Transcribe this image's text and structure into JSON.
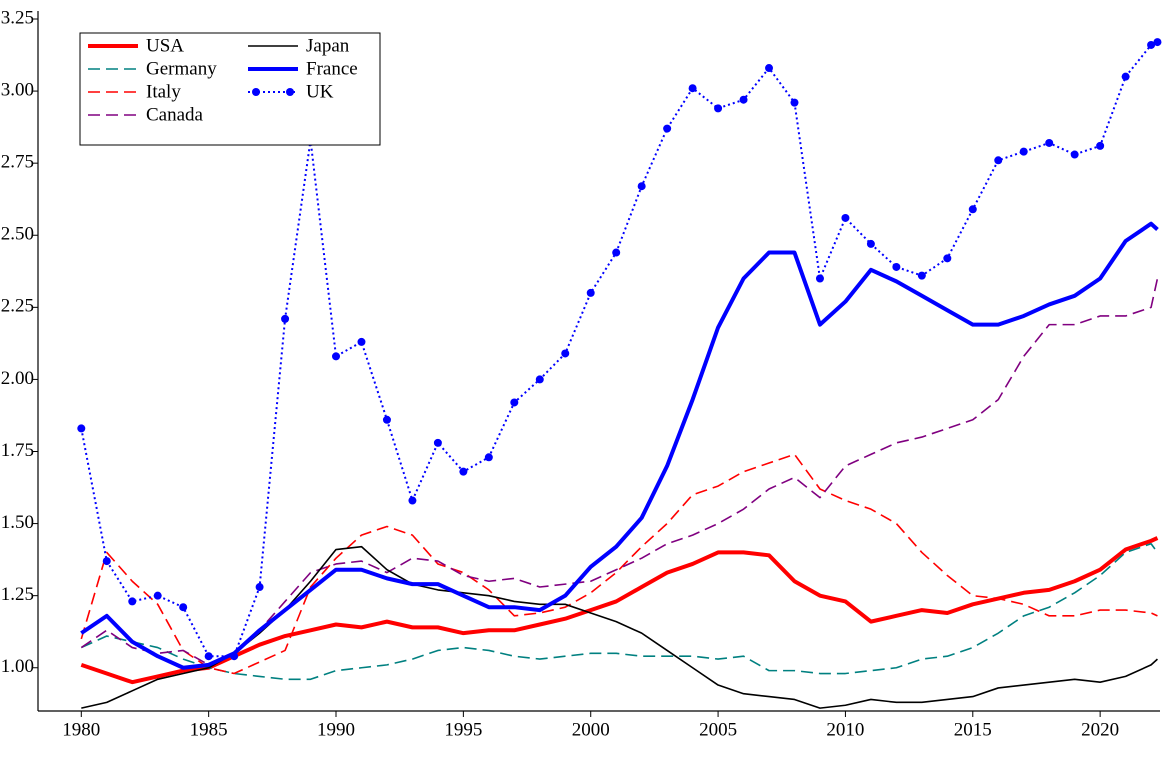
{
  "chart_data": {
    "type": "line",
    "x": [
      1980,
      1981,
      1982,
      1983,
      1984,
      1985,
      1986,
      1987,
      1988,
      1989,
      1990,
      1991,
      1992,
      1993,
      1994,
      1995,
      1996,
      1997,
      1998,
      1999,
      2000,
      2001,
      2002,
      2003,
      2004,
      2005,
      2006,
      2007,
      2008,
      2009,
      2010,
      2011,
      2012,
      2013,
      2014,
      2015,
      2016,
      2017,
      2018,
      2019,
      2020,
      2021,
      2022,
      2022.25
    ],
    "series": [
      {
        "name": "USA",
        "color": "#ff0000",
        "width": 4,
        "dash": "solid",
        "marker": "none",
        "values": [
          1.01,
          0.98,
          0.95,
          0.97,
          0.99,
          1.0,
          1.04,
          1.08,
          1.11,
          1.13,
          1.15,
          1.14,
          1.16,
          1.14,
          1.14,
          1.12,
          1.13,
          1.13,
          1.15,
          1.17,
          1.2,
          1.23,
          1.28,
          1.33,
          1.36,
          1.4,
          1.4,
          1.39,
          1.3,
          1.25,
          1.23,
          1.16,
          1.18,
          1.2,
          1.19,
          1.22,
          1.24,
          1.26,
          1.27,
          1.3,
          1.34,
          1.41,
          1.44,
          1.45
        ]
      },
      {
        "name": "Germany",
        "color": "#008080",
        "width": 1.6,
        "dash": "dashed",
        "marker": "none",
        "values": [
          1.07,
          1.11,
          1.09,
          1.07,
          1.03,
          1.0,
          0.98,
          0.97,
          0.96,
          0.96,
          0.99,
          1.0,
          1.01,
          1.03,
          1.06,
          1.07,
          1.06,
          1.04,
          1.03,
          1.04,
          1.05,
          1.05,
          1.04,
          1.04,
          1.04,
          1.03,
          1.04,
          0.99,
          0.99,
          0.98,
          0.98,
          0.99,
          1.0,
          1.03,
          1.04,
          1.07,
          1.12,
          1.18,
          1.21,
          1.26,
          1.32,
          1.4,
          1.43,
          1.4
        ]
      },
      {
        "name": "Italy",
        "color": "#ff0000",
        "width": 1.6,
        "dash": "dashed",
        "marker": "none",
        "values": [
          1.1,
          1.4,
          1.3,
          1.22,
          1.06,
          1.0,
          0.98,
          1.02,
          1.06,
          1.28,
          1.38,
          1.46,
          1.49,
          1.46,
          1.36,
          1.33,
          1.27,
          1.18,
          1.19,
          1.21,
          1.26,
          1.33,
          1.42,
          1.5,
          1.6,
          1.63,
          1.68,
          1.71,
          1.74,
          1.62,
          1.58,
          1.55,
          1.5,
          1.4,
          1.32,
          1.25,
          1.24,
          1.22,
          1.18,
          1.18,
          1.2,
          1.2,
          1.19,
          1.18
        ]
      },
      {
        "name": "Canada",
        "color": "#800080",
        "width": 1.6,
        "dash": "dashed",
        "marker": "none",
        "values": [
          1.07,
          1.13,
          1.07,
          1.05,
          1.06,
          1.01,
          1.05,
          1.13,
          1.23,
          1.33,
          1.36,
          1.37,
          1.33,
          1.38,
          1.37,
          1.32,
          1.3,
          1.31,
          1.28,
          1.29,
          1.3,
          1.34,
          1.38,
          1.43,
          1.46,
          1.5,
          1.55,
          1.62,
          1.66,
          1.59,
          1.7,
          1.74,
          1.78,
          1.8,
          1.83,
          1.86,
          1.93,
          2.08,
          2.19,
          2.19,
          2.22,
          2.22,
          2.25,
          2.35
        ]
      },
      {
        "name": "Japan",
        "color": "#000000",
        "width": 1.6,
        "dash": "solid",
        "marker": "none",
        "values": [
          0.86,
          0.88,
          0.92,
          0.96,
          0.98,
          1.0,
          1.05,
          1.12,
          1.2,
          1.3,
          1.41,
          1.42,
          1.34,
          1.29,
          1.27,
          1.26,
          1.25,
          1.23,
          1.22,
          1.22,
          1.19,
          1.16,
          1.12,
          1.06,
          1.0,
          0.94,
          0.91,
          0.9,
          0.89,
          0.86,
          0.87,
          0.89,
          0.88,
          0.88,
          0.89,
          0.9,
          0.93,
          0.94,
          0.95,
          0.96,
          0.95,
          0.97,
          1.01,
          1.03
        ]
      },
      {
        "name": "France",
        "color": "#0000ff",
        "width": 4,
        "dash": "solid",
        "marker": "none",
        "values": [
          1.12,
          1.18,
          1.09,
          1.04,
          1.0,
          1.01,
          1.05,
          1.13,
          1.2,
          1.27,
          1.34,
          1.34,
          1.31,
          1.29,
          1.29,
          1.25,
          1.21,
          1.21,
          1.2,
          1.25,
          1.35,
          1.42,
          1.52,
          1.7,
          1.93,
          2.18,
          2.35,
          2.44,
          2.44,
          2.19,
          2.27,
          2.38,
          2.34,
          2.29,
          2.24,
          2.19,
          2.19,
          2.22,
          2.26,
          2.29,
          2.35,
          2.48,
          2.54,
          2.52
        ]
      },
      {
        "name": "UK",
        "color": "#0000ff",
        "width": 2,
        "dash": "dotted",
        "marker": "circle",
        "values": [
          1.83,
          1.37,
          1.23,
          1.25,
          1.21,
          1.04,
          1.04,
          1.28,
          2.21,
          2.83,
          2.08,
          2.13,
          1.86,
          1.58,
          1.78,
          1.68,
          1.73,
          1.92,
          2.0,
          2.09,
          2.3,
          2.44,
          2.67,
          2.87,
          3.01,
          2.94,
          2.97,
          3.08,
          2.96,
          2.35,
          2.56,
          2.47,
          2.39,
          2.36,
          2.42,
          2.59,
          2.76,
          2.79,
          2.82,
          2.78,
          2.81,
          3.05,
          3.16,
          3.17
        ]
      }
    ],
    "xlim": [
      1978.3,
      2022.35
    ],
    "xticks": [
      1980,
      1985,
      1990,
      1995,
      2000,
      2005,
      2010,
      2015,
      2020
    ],
    "ylim": [
      0.85,
      3.25
    ],
    "yticks": [
      {
        "value": 1,
        "label": "1.00"
      },
      {
        "value": 1.25,
        "label": "1.25"
      },
      {
        "value": 1.5,
        "label": "1.50"
      },
      {
        "value": 1.75,
        "label": "1.75"
      },
      {
        "value": 2,
        "label": "2.00"
      },
      {
        "value": 2.25,
        "label": "2.25"
      },
      {
        "value": 2.5,
        "label": "2.50"
      },
      {
        "value": 2.75,
        "label": "2.75"
      },
      {
        "value": 3,
        "label": "3.00"
      },
      {
        "value": 3.25,
        "label": "3.25"
      }
    ],
    "grid": false,
    "legend": "upper left"
  }
}
